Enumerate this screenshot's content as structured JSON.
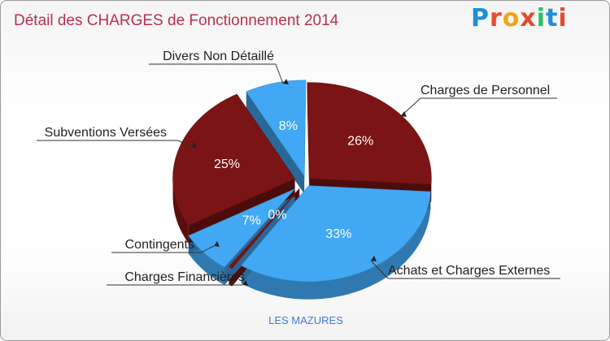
{
  "title": "Détail des CHARGES de Fonctionnement 2014",
  "logo": {
    "text": "Proxiti",
    "letters": [
      "P",
      "r",
      "o",
      "x",
      "i",
      "t",
      "i"
    ],
    "colors": [
      "#1f8fd6",
      "#e34b2f",
      "#f2a319",
      "#e34b2f",
      "#2bbf6a",
      "#1f8fd6",
      "#e34b2f"
    ]
  },
  "commune": "LES MAZURES",
  "colors": {
    "blue": "#42a8f4",
    "darkred": "#7b1414",
    "label": "#222222",
    "pct": "#ffffff"
  },
  "chart_data": {
    "type": "pie",
    "title": "Détail des CHARGES de Fonctionnement 2014",
    "unit": "%",
    "series": [
      {
        "name": "Charges de Personnel",
        "value": 26,
        "label": "26%",
        "color": "darkred"
      },
      {
        "name": "Achats et Charges Externes",
        "value": 33,
        "label": "33%",
        "color": "blue"
      },
      {
        "name": "Charges Financières",
        "value": 0,
        "label": "0%",
        "color": "darkred"
      },
      {
        "name": "Contingents",
        "value": 7,
        "label": "7%",
        "color": "blue"
      },
      {
        "name": "Subventions Versées",
        "value": 25,
        "label": "25%",
        "color": "darkred"
      },
      {
        "name": "Divers Non Détaillé",
        "value": 8,
        "label": "8%",
        "color": "blue"
      }
    ]
  }
}
